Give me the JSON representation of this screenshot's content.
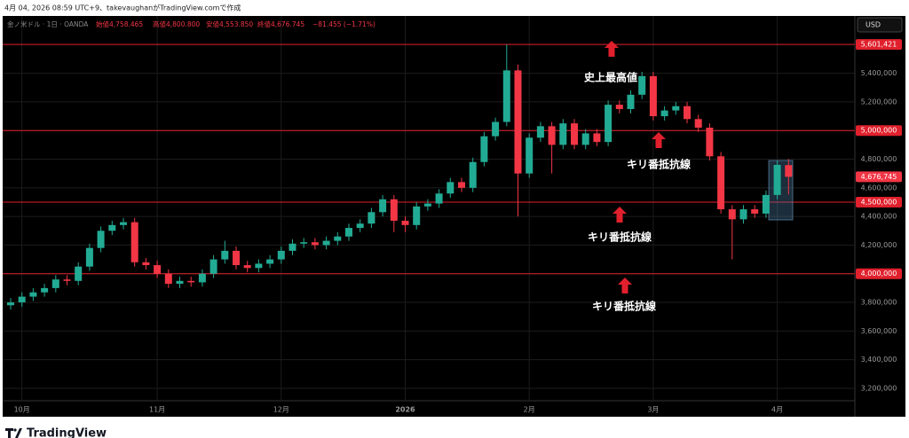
{
  "header": "4月 04, 2026 08:59 UTC+9、takevaughanがTradingView.comで作成",
  "brand": "TradingView",
  "chart_data": {
    "type": "candlestick",
    "legend": {
      "symbol": "金ノ米ドル · 1日 · OANDA",
      "open": "始値4,758.465",
      "high": "高値4,800.800",
      "low": "安値4,553.850",
      "close": "終値4,676.745",
      "change": "−81.455 (−1.71%)"
    },
    "currency": "USD",
    "up_color": "#22ab94",
    "down_color": "#f23645",
    "level_color": "#e0202c",
    "categories": [
      null,
      "10月",
      null,
      null,
      null,
      null,
      null,
      null,
      null,
      null,
      null,
      null,
      null,
      "11月",
      null,
      null,
      null,
      null,
      null,
      null,
      null,
      null,
      null,
      null,
      "12月",
      null,
      null,
      null,
      null,
      null,
      null,
      null,
      null,
      null,
      null,
      "2026",
      null,
      null,
      null,
      null,
      null,
      null,
      null,
      null,
      null,
      null,
      "2月",
      null,
      null,
      null,
      null,
      null,
      null,
      null,
      null,
      null,
      null,
      "3月",
      null,
      null,
      null,
      null,
      null,
      null,
      null,
      null,
      null,
      null,
      "4月",
      null
    ],
    "open": [
      3780000,
      3800000,
      3840000,
      3870000,
      3900000,
      3960000,
      3950000,
      4050000,
      4180000,
      4300000,
      4340000,
      4360000,
      4080000,
      4060000,
      4000000,
      3930000,
      3950000,
      3940000,
      4000000,
      4100000,
      4160000,
      4060000,
      4040000,
      4070000,
      4100000,
      4160000,
      4210000,
      4220000,
      4200000,
      4230000,
      4260000,
      4320000,
      4350000,
      4430000,
      4520000,
      4370000,
      4340000,
      4470000,
      4490000,
      4560000,
      4640000,
      4600000,
      4780000,
      4960000,
      5060000,
      5420000,
      4700000,
      4950000,
      5030000,
      4900000,
      5050000,
      4900000,
      4980000,
      4920000,
      5180000,
      5150000,
      5250000,
      5380000,
      5100000,
      5140000,
      5170000,
      5080000,
      5020000,
      4820000,
      4450000,
      4380000,
      4450000,
      4420000,
      4550000,
      4758465
    ],
    "high": [
      3830000,
      3870000,
      3900000,
      3930000,
      3990000,
      3990000,
      4080000,
      4210000,
      4330000,
      4370000,
      4390000,
      4390000,
      4110000,
      4090000,
      4030000,
      3980000,
      3980000,
      4030000,
      4130000,
      4230000,
      4190000,
      4090000,
      4100000,
      4130000,
      4190000,
      4240000,
      4250000,
      4250000,
      4260000,
      4290000,
      4350000,
      4380000,
      4460000,
      4550000,
      4550000,
      4400000,
      4500000,
      4520000,
      4590000,
      4670000,
      4670000,
      4810000,
      4990000,
      5090000,
      5601421,
      5460000,
      4980000,
      5060000,
      5060000,
      5080000,
      5080000,
      5010000,
      5010000,
      5210000,
      5210000,
      5280000,
      5410000,
      5410000,
      5170000,
      5200000,
      5200000,
      5110000,
      5050000,
      4850000,
      4480000,
      4480000,
      4480000,
      4580000,
      4790000,
      4800800
    ],
    "low": [
      3750000,
      3770000,
      3810000,
      3840000,
      3870000,
      3920000,
      3920000,
      4020000,
      4150000,
      4270000,
      4310000,
      4050000,
      4030000,
      3970000,
      3900000,
      3900000,
      3910000,
      3910000,
      3970000,
      4070000,
      4030000,
      4010000,
      4010000,
      4040000,
      4070000,
      4130000,
      4180000,
      4170000,
      4170000,
      4200000,
      4230000,
      4290000,
      4320000,
      4400000,
      4290000,
      4290000,
      4310000,
      4440000,
      4460000,
      4530000,
      4570000,
      4570000,
      4750000,
      4930000,
      5030000,
      4400000,
      4670000,
      4920000,
      4700000,
      4870000,
      4870000,
      4870000,
      4890000,
      4890000,
      5120000,
      5120000,
      5220000,
      5070000,
      5070000,
      5110000,
      5050000,
      4990000,
      4790000,
      4420000,
      4100000,
      4350000,
      4390000,
      4390000,
      4520000,
      4553850
    ],
    "close": [
      3800000,
      3840000,
      3870000,
      3900000,
      3960000,
      3950000,
      4050000,
      4180000,
      4300000,
      4340000,
      4360000,
      4080000,
      4060000,
      4000000,
      3930000,
      3950000,
      3940000,
      4000000,
      4100000,
      4160000,
      4060000,
      4040000,
      4070000,
      4100000,
      4160000,
      4210000,
      4220000,
      4200000,
      4230000,
      4260000,
      4320000,
      4350000,
      4430000,
      4520000,
      4370000,
      4340000,
      4470000,
      4490000,
      4560000,
      4640000,
      4600000,
      4780000,
      4960000,
      5060000,
      5420000,
      4700000,
      4950000,
      5030000,
      4900000,
      5050000,
      4900000,
      4980000,
      4920000,
      5180000,
      5150000,
      5250000,
      5380000,
      5100000,
      5140000,
      5170000,
      5080000,
      5020000,
      4820000,
      4450000,
      4380000,
      4450000,
      4420000,
      4550000,
      4760000,
      4676745
    ],
    "last_close_label": "4,676,745",
    "ylim": [
      3113000,
      5800000
    ],
    "yticks": [
      {
        "value": 3200000,
        "label": "3,200,000"
      },
      {
        "value": 3400000,
        "label": "3,400,000"
      },
      {
        "value": 3600000,
        "label": "3,600,000"
      },
      {
        "value": 3800000,
        "label": "3,800,000"
      },
      {
        "value": 4000000,
        "label": "4,000,000"
      },
      {
        "value": 4200000,
        "label": "4,200,000"
      },
      {
        "value": 4400000,
        "label": "4,400,000"
      },
      {
        "value": 4600000,
        "label": "4,600,000"
      },
      {
        "value": 4800000,
        "label": "4,800,000"
      },
      {
        "value": 5000000,
        "label": "5,000,000"
      },
      {
        "value": 5200000,
        "label": "5,200,000"
      },
      {
        "value": 5400000,
        "label": "5,400,000"
      }
    ],
    "levels": [
      {
        "value": 5601421,
        "label": "5,601,421"
      },
      {
        "value": 5000000,
        "label": "5,000,000"
      },
      {
        "value": 4500000,
        "label": "4,500,000"
      },
      {
        "value": 4000000,
        "label": "4,000,000"
      }
    ],
    "annotations": [
      "史上最高値",
      "キリ番抵抗線",
      "キリ番抵抗線",
      "キリ番抵抗線"
    ],
    "grid": true
  }
}
